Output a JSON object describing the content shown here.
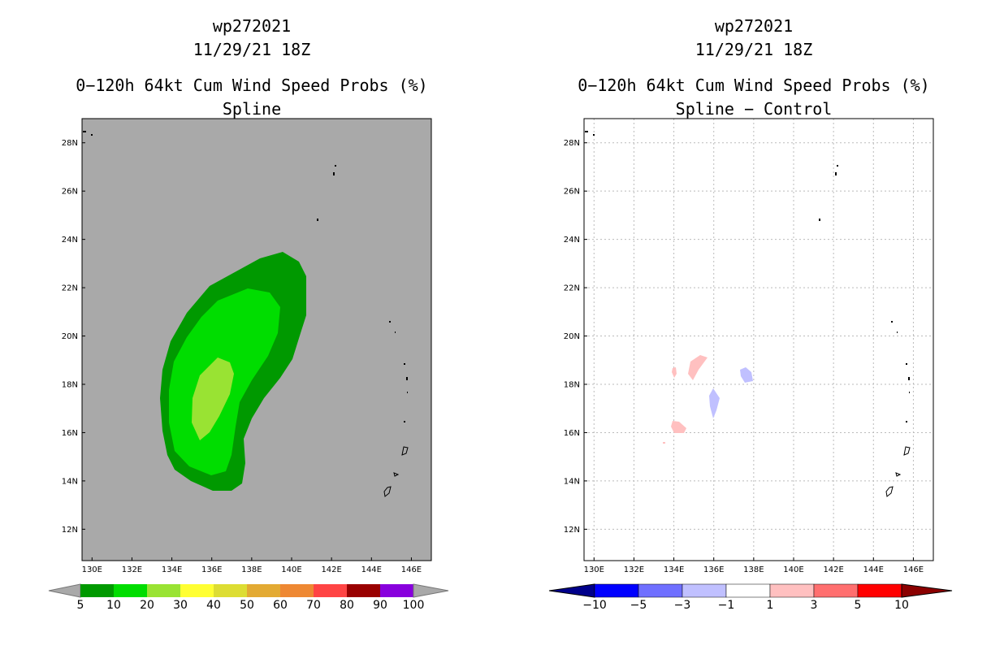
{
  "left_panel": {
    "storm_id": "wp272021",
    "datetime": "11/29/21 18Z",
    "product": "0−120h 64kt Cum Wind Speed Probs (%)",
    "subtitle": "Spline",
    "background_color": "#a9a9a9",
    "colorbar": {
      "labels": [
        "5",
        "10",
        "20",
        "30",
        "40",
        "50",
        "60",
        "70",
        "80",
        "90",
        "100"
      ],
      "colors": [
        "#009900",
        "#00dd00",
        "#99e333",
        "#ffff33",
        "#dddd33",
        "#e3aa33",
        "#ee8833",
        "#ff4444",
        "#990000",
        "#8800dd"
      ],
      "end_color": "#a9a9a9"
    }
  },
  "right_panel": {
    "storm_id": "wp272021",
    "datetime": "11/29/21 18Z",
    "product": "0−120h 64kt Cum Wind Speed Probs (%)",
    "subtitle": "Spline − Control",
    "background_color": "#ffffff",
    "colorbar": {
      "labels": [
        "−10",
        "−5",
        "−3",
        "−1",
        "1",
        "3",
        "5",
        "10"
      ],
      "colors": [
        "#0000ff",
        "#6f6fff",
        "#c0c0ff",
        "#ffffff",
        "#ffc0c0",
        "#ff6f6f",
        "#ff0000"
      ],
      "low_end_color": "#00008b",
      "high_end_color": "#8b0000"
    }
  },
  "axes": {
    "lon_labels": [
      "130E",
      "132E",
      "134E",
      "136E",
      "138E",
      "140E",
      "142E",
      "144E",
      "146E"
    ],
    "lat_labels": [
      "28N",
      "26N",
      "24N",
      "22N",
      "20N",
      "18N",
      "16N",
      "14N",
      "12N"
    ],
    "lon_values": [
      130,
      132,
      134,
      136,
      138,
      140,
      142,
      144,
      146
    ],
    "lat_values": [
      28,
      26,
      24,
      22,
      20,
      18,
      16,
      14,
      12
    ],
    "lon_range": [
      129.5,
      147.0
    ],
    "lat_range": [
      10.7,
      29.0
    ]
  }
}
